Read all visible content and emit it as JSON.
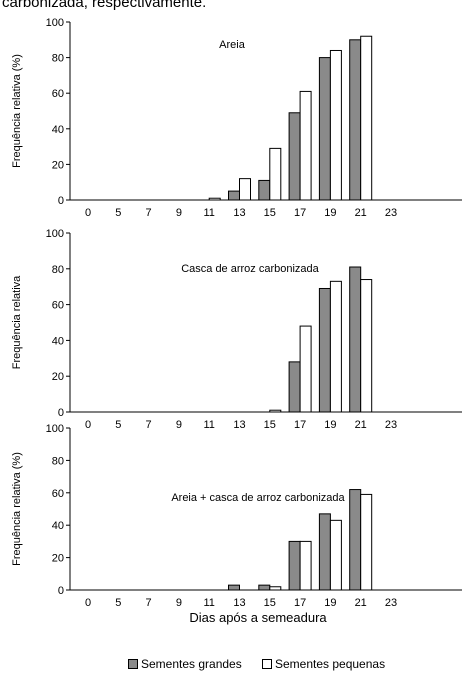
{
  "caption": "carbonizada, respectivamente.",
  "colors": {
    "grandes": "#8a8a8a",
    "pequenas": "#ffffff",
    "stroke": "#000000"
  },
  "legend": {
    "grandes": "Sementes grandes",
    "pequenas": "Sementes pequenas"
  },
  "chart_data": [
    {
      "type": "bar",
      "title": "Areia",
      "ylabel": "Frequência relativa (%)",
      "xlabel": "",
      "ylim": [
        0,
        100
      ],
      "yticks": [
        0,
        20,
        40,
        60,
        80,
        100
      ],
      "categories": [
        "0",
        "5",
        "7",
        "9",
        "11",
        "13",
        "15",
        "17",
        "19",
        "21",
        "23"
      ],
      "series": [
        {
          "name": "Sementes grandes",
          "values": [
            0,
            0,
            0,
            0,
            0,
            5,
            11,
            49,
            80,
            90,
            0
          ]
        },
        {
          "name": "Sementes pequenas",
          "values": [
            0,
            0,
            0,
            0,
            1,
            12,
            29,
            61,
            84,
            92,
            0
          ]
        }
      ]
    },
    {
      "type": "bar",
      "title": "Casca de arroz carbonizada",
      "ylabel": "Frequência relativa",
      "xlabel": "",
      "ylim": [
        0,
        100
      ],
      "yticks": [
        0,
        20,
        40,
        60,
        80,
        100
      ],
      "categories": [
        "0",
        "5",
        "7",
        "9",
        "11",
        "13",
        "15",
        "17",
        "19",
        "21",
        "23"
      ],
      "series": [
        {
          "name": "Sementes grandes",
          "values": [
            0,
            0,
            0,
            0,
            0,
            0,
            0,
            28,
            69,
            81,
            0
          ]
        },
        {
          "name": "Sementes pequenas",
          "values": [
            0,
            0,
            0,
            0,
            0,
            0,
            1,
            48,
            73,
            74,
            0
          ]
        }
      ]
    },
    {
      "type": "bar",
      "title": "Areia + casca de arroz carbonizada",
      "ylabel": "Frequência relativa (%)",
      "xlabel": "Dias após a semeadura",
      "ylim": [
        0,
        100
      ],
      "yticks": [
        0,
        20,
        40,
        60,
        80,
        100
      ],
      "categories": [
        "0",
        "5",
        "7",
        "9",
        "11",
        "13",
        "15",
        "17",
        "19",
        "21",
        "23"
      ],
      "series": [
        {
          "name": "Sementes grandes",
          "values": [
            0,
            0,
            0,
            0,
            0,
            3,
            3,
            30,
            47,
            62,
            0
          ]
        },
        {
          "name": "Sementes pequenas",
          "values": [
            0,
            0,
            0,
            0,
            0,
            0,
            2,
            30,
            43,
            59,
            0
          ]
        }
      ]
    }
  ]
}
